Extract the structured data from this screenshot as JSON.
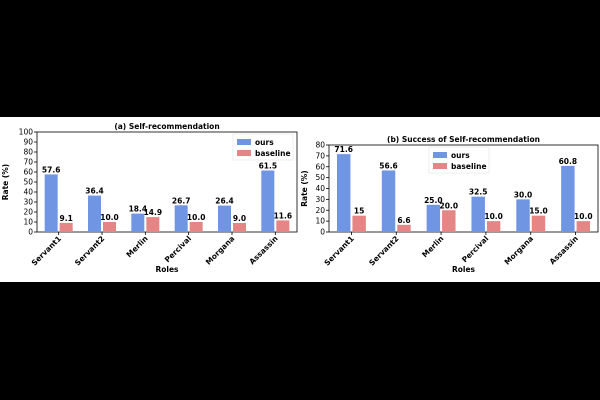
{
  "chart_data": [
    {
      "type": "bar",
      "title": "(a) Self-recommendation",
      "xlabel": "Roles",
      "ylabel": "Rate (%)",
      "ylim": [
        0,
        100
      ],
      "yticks": [
        0,
        10,
        20,
        30,
        40,
        50,
        60,
        70,
        80,
        90,
        100
      ],
      "categories": [
        "Servant1",
        "Servant2",
        "Merlin",
        "Percival",
        "Morgana",
        "Assassin"
      ],
      "series": [
        {
          "name": "ours",
          "values": [
            57.6,
            36.4,
            18.4,
            26.7,
            26.4,
            61.5
          ],
          "labels": [
            "57.6",
            "36.4",
            "18.4",
            "26.7",
            "26.4",
            "61.5"
          ],
          "color": "#6f95e3"
        },
        {
          "name": "baseline",
          "values": [
            9.1,
            10.0,
            14.9,
            10.0,
            9.0,
            11.6
          ],
          "labels": [
            "9.1",
            "10.0",
            "14.9",
            "10.0",
            "9.0",
            "11.6"
          ],
          "color": "#e58585"
        }
      ],
      "legend": "top-right",
      "grid": false
    },
    {
      "type": "bar",
      "title": "(b) Success of Self-recommendation",
      "xlabel": "Roles",
      "ylabel": "Rate (%)",
      "ylim": [
        0,
        80
      ],
      "yticks": [
        0,
        10,
        20,
        30,
        40,
        50,
        60,
        70,
        80
      ],
      "categories": [
        "Servant1",
        "Servant2",
        "Merlin",
        "Percival",
        "Morgana",
        "Assassin"
      ],
      "series": [
        {
          "name": "ours",
          "values": [
            71.6,
            56.6,
            25.0,
            32.5,
            30.0,
            60.8
          ],
          "labels": [
            "71.6",
            "56.6",
            "25.0",
            "32.5",
            "30.0",
            "60.8"
          ],
          "color": "#6f95e3"
        },
        {
          "name": "baseline",
          "values": [
            15,
            6.6,
            20.0,
            10.0,
            15.0,
            10.0
          ],
          "labels": [
            "15",
            "6.6",
            "20.0",
            "10.0",
            "15.0",
            "10.0"
          ],
          "color": "#e58585"
        }
      ],
      "legend": "top-right",
      "grid": false
    }
  ]
}
